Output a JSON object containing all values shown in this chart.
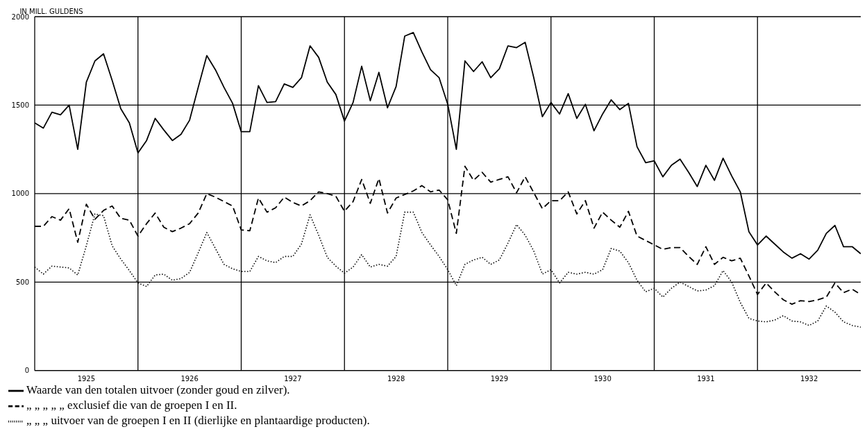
{
  "chart_data": {
    "type": "line",
    "ylabel": "IN MILL. GULDENS",
    "x": [
      "1925-01",
      "1925-02",
      "1925-03",
      "1925-04",
      "1925-05",
      "1925-06",
      "1925-07",
      "1925-08",
      "1925-09",
      "1925-10",
      "1925-11",
      "1925-12",
      "1926-01",
      "1926-02",
      "1926-03",
      "1926-04",
      "1926-05",
      "1926-06",
      "1926-07",
      "1926-08",
      "1926-09",
      "1926-10",
      "1926-11",
      "1926-12",
      "1927-01",
      "1927-02",
      "1927-03",
      "1927-04",
      "1927-05",
      "1927-06",
      "1927-07",
      "1927-08",
      "1927-09",
      "1927-10",
      "1927-11",
      "1927-12",
      "1928-01",
      "1928-02",
      "1928-03",
      "1928-04",
      "1928-05",
      "1928-06",
      "1928-07",
      "1928-08",
      "1928-09",
      "1928-10",
      "1928-11",
      "1928-12",
      "1929-01",
      "1929-02",
      "1929-03",
      "1929-04",
      "1929-05",
      "1929-06",
      "1929-07",
      "1929-08",
      "1929-09",
      "1929-10",
      "1929-11",
      "1929-12",
      "1930-01",
      "1930-02",
      "1930-03",
      "1930-04",
      "1930-05",
      "1930-06",
      "1930-07",
      "1930-08",
      "1930-09",
      "1930-10",
      "1930-11",
      "1930-12",
      "1931-01",
      "1931-02",
      "1931-03",
      "1931-04",
      "1931-05",
      "1931-06",
      "1931-07",
      "1931-08",
      "1931-09",
      "1931-10",
      "1931-11",
      "1931-12",
      "1932-01",
      "1932-02",
      "1932-03",
      "1932-04",
      "1932-05",
      "1932-06",
      "1932-07",
      "1932-08",
      "1932-09",
      "1932-10",
      "1932-11",
      "1932-12",
      "1933-01"
    ],
    "series": [
      {
        "name": "Waarde van den totalen uitvoer (zonder goud en zilver).",
        "color": "#000000",
        "line_style": "solid",
        "values": [
          1400,
          1370,
          1460,
          1445,
          1500,
          1250,
          1630,
          1750,
          1790,
          1640,
          1480,
          1400,
          1230,
          1300,
          1425,
          1360,
          1300,
          1335,
          1415,
          1600,
          1780,
          1700,
          1600,
          1510,
          1350,
          1350,
          1610,
          1515,
          1520,
          1620,
          1600,
          1655,
          1835,
          1770,
          1630,
          1560,
          1410,
          1515,
          1720,
          1525,
          1685,
          1485,
          1605,
          1890,
          1910,
          1800,
          1700,
          1655,
          1505,
          1250,
          1750,
          1690,
          1745,
          1655,
          1705,
          1835,
          1825,
          1855,
          1655,
          1435,
          1515,
          1450,
          1565,
          1425,
          1505,
          1355,
          1450,
          1530,
          1475,
          1510,
          1265,
          1175,
          1185,
          1095,
          1160,
          1195,
          1120,
          1040,
          1160,
          1075,
          1200,
          1100,
          1010,
          785,
          710,
          760,
          715,
          670,
          635,
          660,
          630,
          680,
          775,
          820,
          700,
          700,
          660
        ]
      },
      {
        "name": "„ „ „ „ „ exclusief die van de groepen I en II.",
        "color": "#000000",
        "line_style": "dashed",
        "values": [
          815,
          815,
          870,
          850,
          915,
          725,
          940,
          855,
          905,
          930,
          860,
          850,
          760,
          830,
          890,
          810,
          785,
          805,
          830,
          890,
          1000,
          980,
          955,
          930,
          795,
          790,
          975,
          895,
          920,
          980,
          950,
          930,
          960,
          1010,
          1000,
          985,
          900,
          955,
          1080,
          945,
          1085,
          890,
          975,
          995,
          1015,
          1045,
          1010,
          1020,
          965,
          775,
          1155,
          1075,
          1120,
          1065,
          1080,
          1095,
          1005,
          1095,
          1005,
          915,
          960,
          960,
          1010,
          885,
          960,
          805,
          895,
          850,
          810,
          900,
          760,
          735,
          710,
          685,
          695,
          695,
          645,
          600,
          700,
          600,
          640,
          620,
          635,
          535,
          430,
          495,
          445,
          400,
          375,
          395,
          390,
          400,
          415,
          495,
          440,
          460,
          430
        ]
      },
      {
        "name": "„ „ „ uitvoer van de groepen I en II (dierlijke en plantaardige producten).",
        "color": "#000000",
        "line_style": "dotted",
        "values": [
          585,
          545,
          590,
          585,
          580,
          540,
          705,
          885,
          875,
          705,
          630,
          565,
          495,
          475,
          540,
          545,
          510,
          520,
          555,
          665,
          780,
          690,
          600,
          575,
          560,
          560,
          645,
          620,
          610,
          645,
          645,
          715,
          880,
          765,
          640,
          590,
          550,
          585,
          655,
          585,
          600,
          590,
          645,
          895,
          895,
          780,
          710,
          645,
          570,
          480,
          600,
          625,
          640,
          600,
          625,
          720,
          825,
          765,
          675,
          545,
          570,
          495,
          555,
          545,
          555,
          545,
          570,
          690,
          675,
          610,
          510,
          445,
          465,
          415,
          465,
          500,
          475,
          450,
          455,
          480,
          565,
          500,
          385,
          295,
          280,
          275,
          285,
          310,
          280,
          275,
          255,
          280,
          365,
          330,
          275,
          255,
          245
        ]
      }
    ],
    "xlim": [
      "1925-01",
      "1933-01"
    ],
    "xticks": [
      {
        "value": "1926-01",
        "label": null
      },
      {
        "value": "1927-01",
        "label": null
      },
      {
        "value": "1928-01",
        "label": null
      },
      {
        "value": "1929-01",
        "label": null
      },
      {
        "value": "1930-01",
        "label": null
      },
      {
        "value": "1931-01",
        "label": null
      },
      {
        "value": "1932-01",
        "label": null
      },
      {
        "value": "1925-07",
        "label": "1925"
      },
      {
        "value": "1926-07",
        "label": "1926"
      },
      {
        "value": "1927-07",
        "label": "1927"
      },
      {
        "value": "1928-07",
        "label": "1928"
      },
      {
        "value": "1929-07",
        "label": "1929"
      },
      {
        "value": "1930-07",
        "label": "1930"
      },
      {
        "value": "1931-07",
        "label": "1931"
      },
      {
        "value": "1932-07",
        "label": "1932"
      }
    ],
    "ylim": [
      0,
      2000
    ],
    "yticks": [
      0,
      500,
      1000,
      1500,
      2000
    ],
    "grid": true,
    "legend": "bottom left",
    "marker": "none"
  }
}
